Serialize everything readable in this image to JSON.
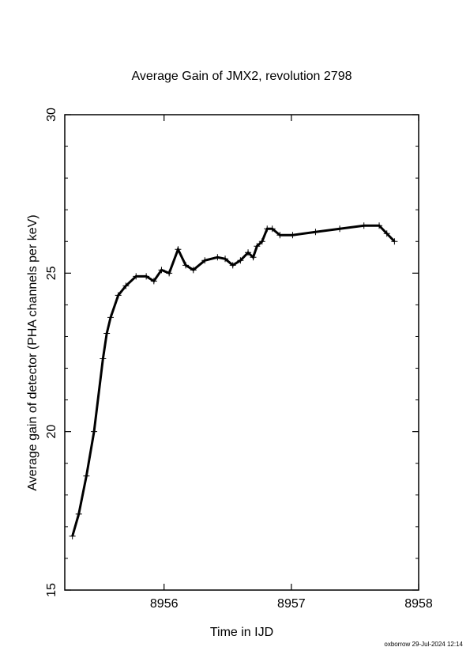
{
  "chart_data": {
    "type": "scatter",
    "title": "Average Gain of JMX2, revolution 2798",
    "xlabel": "Time in IJD",
    "ylabel": "Average gain of detector (PHA channels per keV)",
    "footer": "oxborrow 29-Jul-2024 12:14",
    "xlim": [
      8955.22,
      8958
    ],
    "xticks": [
      8956,
      8957,
      8958
    ],
    "ylim": [
      15,
      30
    ],
    "yticks": [
      15,
      20,
      25,
      30
    ],
    "yminorticks": [
      16,
      17,
      18,
      19,
      21,
      22,
      23,
      24,
      26,
      27,
      28,
      29
    ],
    "color": "#000000",
    "x": [
      8955.28,
      8955.33,
      8955.39,
      8955.45,
      8955.52,
      8955.55,
      8955.58,
      8955.64,
      8955.7,
      8955.78,
      8955.86,
      8955.92,
      8955.98,
      8956.04,
      8956.11,
      8956.17,
      8956.23,
      8956.32,
      8956.42,
      8956.48,
      8956.54,
      8956.6,
      8956.66,
      8956.7,
      8956.73,
      8956.77,
      8956.81,
      8956.85,
      8956.91,
      8957.01,
      8957.19,
      8957.38,
      8957.57,
      8957.69,
      8957.75,
      8957.81
    ],
    "values": [
      16.7,
      17.4,
      18.6,
      20.0,
      22.3,
      23.1,
      23.6,
      24.3,
      24.6,
      24.9,
      24.9,
      24.75,
      25.1,
      25.0,
      25.75,
      25.25,
      25.1,
      25.4,
      25.5,
      25.45,
      25.25,
      25.4,
      25.65,
      25.5,
      25.85,
      26.0,
      26.4,
      26.4,
      26.2,
      26.2,
      26.3,
      26.4,
      26.5,
      26.5,
      26.25,
      26.0
    ]
  }
}
